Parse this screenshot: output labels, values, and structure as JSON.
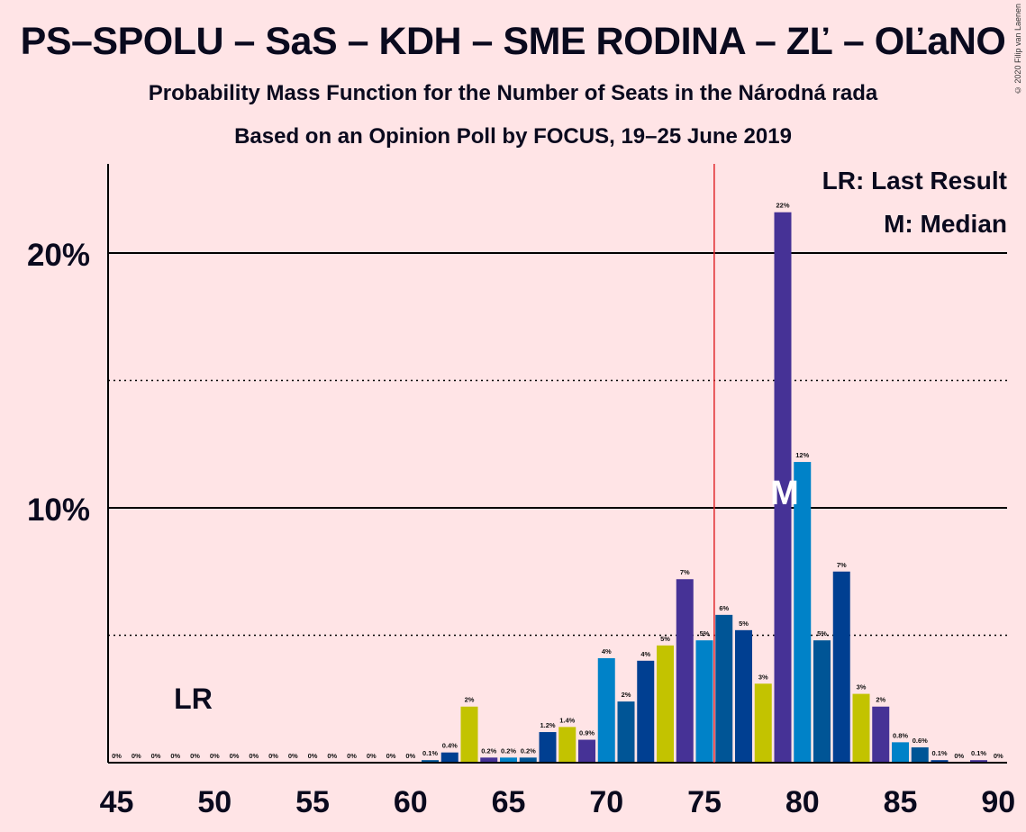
{
  "title": "PS–SPOLU – SaS – KDH – SME RODINA – ZĽ – OĽaNO",
  "subtitle1": "Probability Mass Function for the Number of Seats in the Národná rada",
  "subtitle2": "Based on an Opinion Poll by FOCUS, 19–25 June 2019",
  "copyright": "© 2020 Filip van Laenen",
  "legend": {
    "lr": "LR: Last Result",
    "median": "M: Median"
  },
  "markers": {
    "lr_text": "LR",
    "median_text": "M"
  },
  "chart_data": {
    "type": "bar",
    "x": [
      45,
      46,
      47,
      48,
      49,
      50,
      51,
      52,
      53,
      54,
      55,
      56,
      57,
      58,
      59,
      60,
      61,
      62,
      63,
      64,
      65,
      66,
      67,
      68,
      69,
      70,
      71,
      72,
      73,
      74,
      75,
      76,
      77,
      78,
      79,
      80,
      81,
      82,
      83,
      84,
      85,
      86,
      87,
      88,
      89,
      90
    ],
    "values": [
      0,
      0,
      0,
      0,
      0,
      0,
      0,
      0,
      0,
      0,
      0,
      0,
      0,
      0,
      0,
      0,
      0.1,
      0.4,
      2.2,
      0.2,
      0.2,
      0.2,
      1.2,
      1.4,
      0.9,
      4.1,
      2.4,
      4.0,
      4.6,
      7.2,
      4.8,
      5.8,
      5.2,
      3.1,
      21.6,
      11.8,
      4.8,
      7.5,
      2.7,
      2.2,
      0.8,
      0.6,
      0.1,
      0,
      0.1,
      0
    ],
    "labels": [
      "0%",
      "0%",
      "0%",
      "0%",
      "0%",
      "0%",
      "0%",
      "0%",
      "0%",
      "0%",
      "0%",
      "0%",
      "0%",
      "0%",
      "0%",
      "0%",
      "0.1%",
      "0.4%",
      "2%",
      "0.2%",
      "0.2%",
      "0.2%",
      "1.2%",
      "1.4%",
      "0.9%",
      "4%",
      "2%",
      "4%",
      "5%",
      "7%",
      "5%",
      "6%",
      "5%",
      "3%",
      "22%",
      "12%",
      "5%",
      "7%",
      "3%",
      "2%",
      "0.8%",
      "0.6%",
      "0.1%",
      "0%",
      "0.1%",
      "0%"
    ],
    "colors": [
      "#0082C8",
      "#005596",
      "#003F91",
      "#C3C300",
      "#463296"
    ],
    "ylim": [
      0,
      23.5
    ],
    "ytick_labels": [
      "10%",
      "20%"
    ],
    "ytick_values": [
      10,
      20
    ],
    "xtick_values": [
      45,
      50,
      55,
      60,
      65,
      70,
      75,
      80,
      85,
      90
    ],
    "majority_line": 75.5,
    "last_result": 49,
    "median": 79,
    "grid": true
  }
}
